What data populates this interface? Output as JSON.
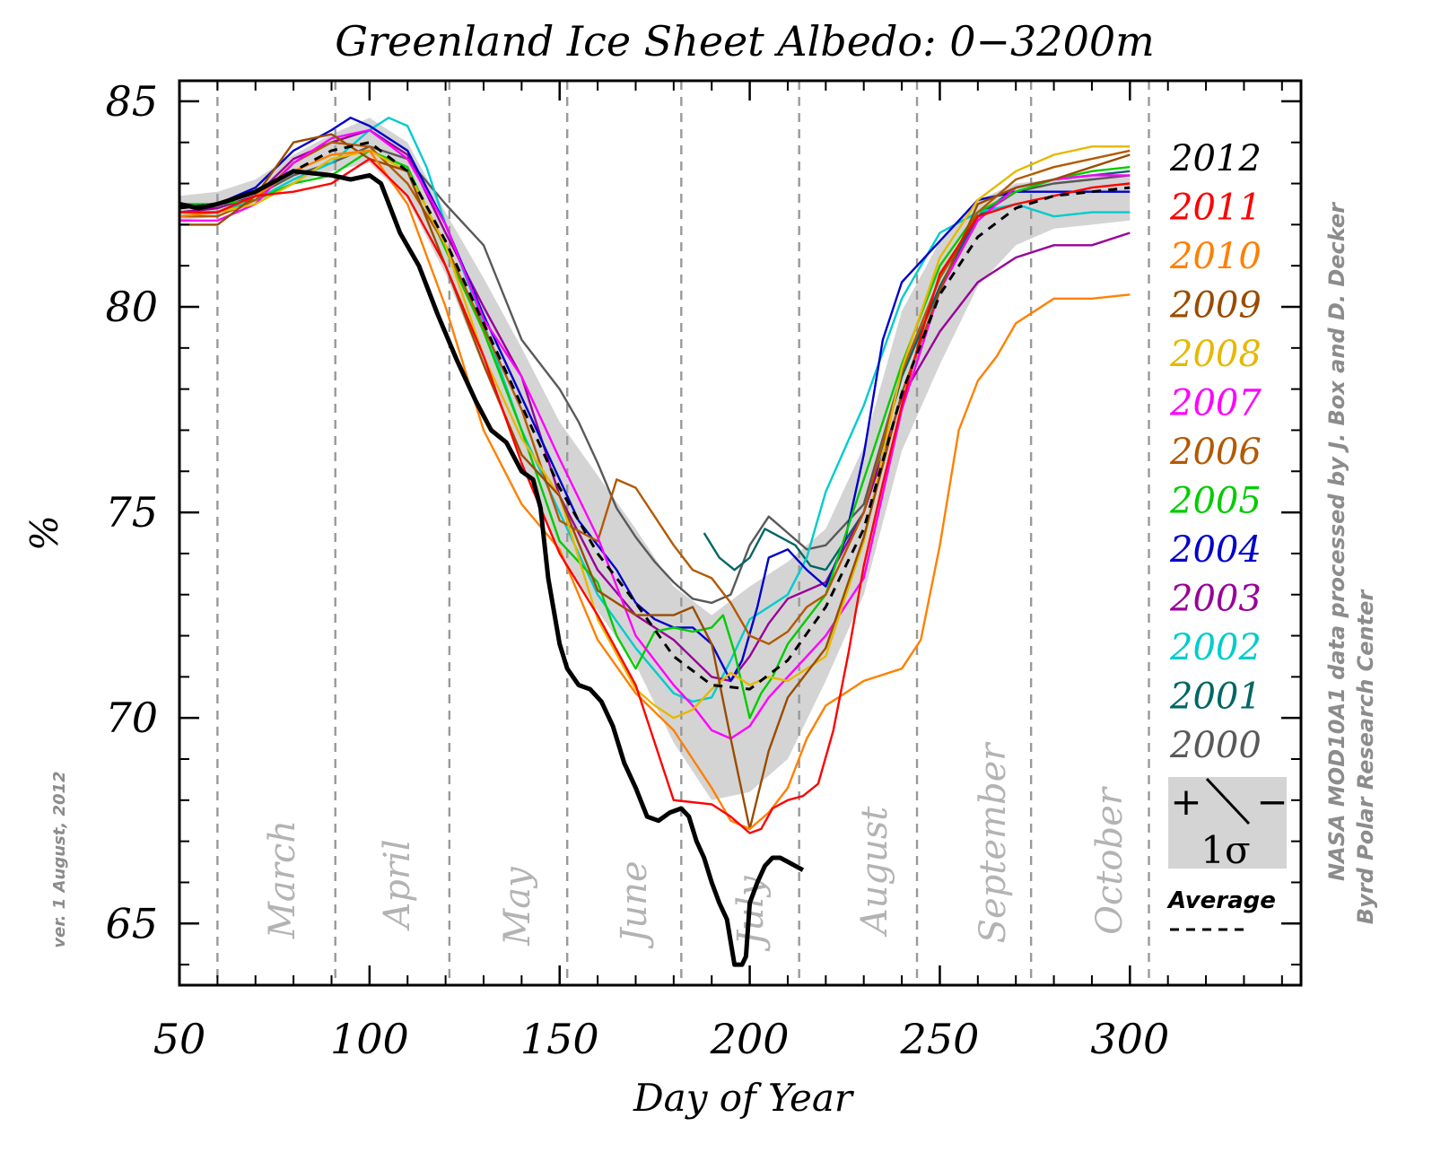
{
  "chart_data": {
    "type": "line",
    "title": "Greenland Ice Sheet Albedo: 0−3200m",
    "xlabel": "Day of Year",
    "ylabel": "%",
    "xlim": [
      50,
      345
    ],
    "ylim": [
      63.5,
      85.5
    ],
    "xticks": [
      50,
      100,
      150,
      200,
      250,
      300
    ],
    "yticks": [
      65,
      70,
      75,
      80,
      85
    ],
    "month_markers": [
      {
        "name": "March",
        "day": 60
      },
      {
        "name": "April",
        "day": 91
      },
      {
        "name": "May",
        "day": 121
      },
      {
        "name": "June",
        "day": 152
      },
      {
        "name": "July",
        "day": 182
      },
      {
        "name": "August",
        "day": 213
      },
      {
        "name": "September",
        "day": 244
      },
      {
        "name": "October",
        "day": 274
      },
      {
        "name": "",
        "day": 305
      }
    ],
    "grid": "vertical dashed month boundaries",
    "legend_position": "right",
    "band": {
      "label": "1σ",
      "plus": "+",
      "minus": "−",
      "color": "#d4d4d4",
      "x": [
        50,
        60,
        70,
        80,
        90,
        100,
        110,
        120,
        130,
        140,
        150,
        160,
        170,
        180,
        190,
        200,
        210,
        220,
        230,
        240,
        250,
        260,
        270,
        280,
        290,
        300
      ],
      "upper": [
        82.7,
        82.8,
        83.1,
        83.7,
        84.2,
        84.6,
        84.0,
        82.3,
        80.7,
        79.0,
        77.2,
        75.9,
        74.6,
        73.2,
        72.5,
        73.2,
        73.8,
        74.6,
        76.6,
        79.9,
        81.6,
        82.6,
        83.0,
        83.1,
        83.2,
        83.2
      ],
      "lower": [
        82.1,
        82.2,
        82.5,
        83.0,
        83.3,
        83.5,
        82.6,
        80.8,
        78.5,
        76.3,
        74.0,
        72.6,
        71.3,
        69.4,
        68.0,
        68.2,
        69.0,
        70.9,
        73.0,
        76.5,
        78.6,
        80.5,
        81.5,
        81.9,
        82.0,
        82.1
      ]
    },
    "average": {
      "name": "Average",
      "style": "dashed",
      "x": [
        50,
        60,
        70,
        80,
        90,
        100,
        110,
        120,
        130,
        140,
        150,
        160,
        170,
        180,
        190,
        200,
        210,
        220,
        230,
        240,
        250,
        260,
        270,
        280,
        290,
        300
      ],
      "y": [
        82.4,
        82.5,
        82.8,
        83.3,
        83.8,
        84.0,
        83.3,
        81.6,
        79.6,
        77.6,
        75.6,
        74.0,
        72.8,
        71.5,
        70.8,
        70.7,
        71.4,
        72.7,
        74.6,
        77.9,
        80.3,
        81.7,
        82.4,
        82.7,
        82.8,
        82.9
      ]
    },
    "series": [
      {
        "name": "2012",
        "color": "#000000",
        "width": 5,
        "x": [
          50,
          55,
          60,
          70,
          80,
          90,
          95,
          100,
          103,
          108,
          113,
          118,
          123,
          128,
          132,
          136,
          140,
          143,
          145,
          147,
          150,
          152,
          155,
          158,
          161,
          164,
          167,
          170,
          173,
          176,
          179,
          182,
          184,
          186,
          188,
          190,
          192,
          194,
          196,
          198,
          199,
          200,
          202,
          204,
          206,
          208,
          210,
          212,
          214
        ],
        "y": [
          82.5,
          82.4,
          82.5,
          82.8,
          83.3,
          83.2,
          83.1,
          83.2,
          83.0,
          81.8,
          81.0,
          79.8,
          78.7,
          77.7,
          77.0,
          76.7,
          76.0,
          75.8,
          75.1,
          73.4,
          71.8,
          71.2,
          70.8,
          70.7,
          70.4,
          69.8,
          68.9,
          68.3,
          67.6,
          67.5,
          67.7,
          67.8,
          67.6,
          67.0,
          66.6,
          66.0,
          65.5,
          65.1,
          64.0,
          64.0,
          64.2,
          65.5,
          66.0,
          66.4,
          66.6,
          66.6,
          66.5,
          66.4,
          66.3
        ]
      },
      {
        "name": "2011",
        "color": "#ff0000",
        "width": 2.4,
        "x": [
          50,
          60,
          70,
          80,
          90,
          100,
          110,
          120,
          130,
          140,
          150,
          160,
          170,
          180,
          190,
          195,
          200,
          203,
          206,
          210,
          214,
          218,
          222,
          226,
          230,
          235,
          240,
          245,
          250,
          260,
          270,
          280,
          290,
          300
        ],
        "y": [
          82.3,
          82.3,
          82.7,
          82.8,
          83.0,
          83.6,
          82.7,
          81.0,
          78.8,
          76.2,
          74.0,
          72.5,
          70.8,
          68.0,
          67.9,
          67.6,
          67.2,
          67.3,
          67.8,
          68.0,
          68.1,
          68.4,
          69.7,
          71.6,
          73.7,
          75.7,
          77.6,
          79.3,
          80.8,
          82.2,
          82.5,
          82.7,
          82.9,
          83.0
        ]
      },
      {
        "name": "2010",
        "color": "#ff8000",
        "width": 2.4,
        "x": [
          50,
          60,
          70,
          80,
          90,
          100,
          110,
          120,
          130,
          140,
          150,
          160,
          170,
          180,
          190,
          195,
          200,
          205,
          210,
          215,
          220,
          225,
          230,
          240,
          245,
          250,
          255,
          260,
          265,
          270,
          280,
          290,
          300
        ],
        "y": [
          82.2,
          82.3,
          82.7,
          83.3,
          83.7,
          83.8,
          82.5,
          80.0,
          77.0,
          75.2,
          74.1,
          71.9,
          70.6,
          69.7,
          68.3,
          67.5,
          67.3,
          67.7,
          68.3,
          69.5,
          70.3,
          70.6,
          70.9,
          71.2,
          71.9,
          74.2,
          77.0,
          78.2,
          78.8,
          79.6,
          80.2,
          80.2,
          80.3
        ]
      },
      {
        "name": "2009",
        "color": "#994c00",
        "width": 2.4,
        "x": [
          50,
          60,
          70,
          80,
          90,
          100,
          110,
          120,
          130,
          140,
          150,
          160,
          170,
          180,
          185,
          190,
          195,
          200,
          205,
          210,
          220,
          230,
          240,
          250,
          260,
          270,
          280,
          290,
          300
        ],
        "y": [
          82.0,
          82.0,
          82.7,
          84.0,
          84.2,
          83.6,
          83.3,
          81.0,
          78.6,
          76.4,
          75.4,
          73.1,
          72.5,
          72.5,
          72.7,
          71.8,
          69.5,
          67.3,
          69.2,
          70.5,
          71.7,
          74.4,
          77.9,
          80.4,
          82.5,
          82.9,
          83.1,
          83.4,
          83.7
        ]
      },
      {
        "name": "2008",
        "color": "#e6b800",
        "width": 2.4,
        "x": [
          50,
          60,
          70,
          80,
          90,
          100,
          110,
          120,
          130,
          140,
          150,
          160,
          170,
          175,
          180,
          185,
          190,
          195,
          200,
          205,
          210,
          220,
          230,
          240,
          250,
          260,
          270,
          280,
          290,
          300
        ],
        "y": [
          82.3,
          82.3,
          82.5,
          83.0,
          83.6,
          83.8,
          83.3,
          81.5,
          78.8,
          76.8,
          75.4,
          72.4,
          70.7,
          70.3,
          70.0,
          70.2,
          70.7,
          71.1,
          70.8,
          71.0,
          70.9,
          71.5,
          74.3,
          78.5,
          81.2,
          82.6,
          83.3,
          83.7,
          83.9,
          83.9
        ]
      },
      {
        "name": "2007",
        "color": "#ff00ff",
        "width": 2.4,
        "x": [
          50,
          60,
          70,
          80,
          90,
          100,
          110,
          120,
          130,
          140,
          150,
          160,
          170,
          180,
          185,
          190,
          195,
          200,
          205,
          210,
          215,
          220,
          230,
          240,
          250,
          260,
          270,
          280,
          290,
          300
        ],
        "y": [
          82.1,
          82.1,
          82.5,
          83.5,
          84.1,
          84.3,
          83.6,
          82.0,
          79.7,
          78.3,
          76.3,
          74.4,
          72.0,
          70.8,
          70.3,
          69.7,
          69.5,
          69.8,
          70.5,
          71.0,
          71.5,
          72.0,
          73.4,
          77.5,
          80.4,
          82.1,
          82.9,
          83.1,
          83.2,
          83.2
        ]
      },
      {
        "name": "2006",
        "color": "#b35900",
        "width": 2.4,
        "x": [
          50,
          60,
          70,
          80,
          90,
          100,
          110,
          120,
          130,
          140,
          150,
          160,
          165,
          170,
          175,
          180,
          185,
          190,
          195,
          200,
          205,
          210,
          215,
          220,
          230,
          240,
          250,
          260,
          270,
          280,
          290,
          300
        ],
        "y": [
          82.2,
          82.2,
          82.6,
          83.5,
          84.0,
          83.9,
          83.0,
          81.5,
          79.5,
          77.5,
          74.8,
          74.3,
          75.8,
          75.6,
          74.9,
          74.2,
          73.6,
          73.4,
          72.8,
          72.0,
          71.8,
          72.1,
          72.7,
          73.0,
          75.0,
          78.4,
          80.7,
          82.3,
          83.1,
          83.4,
          83.6,
          83.8
        ]
      },
      {
        "name": "2005",
        "color": "#00cc00",
        "width": 2.4,
        "x": [
          50,
          60,
          70,
          80,
          90,
          100,
          110,
          120,
          130,
          140,
          150,
          160,
          165,
          170,
          175,
          180,
          185,
          190,
          193,
          196,
          200,
          203,
          206,
          210,
          220,
          230,
          240,
          250,
          260,
          270,
          280,
          290,
          300
        ],
        "y": [
          82.5,
          82.5,
          82.6,
          83.0,
          83.2,
          83.8,
          83.4,
          81.4,
          79.4,
          77.0,
          74.3,
          73.3,
          72.0,
          71.2,
          72.1,
          72.2,
          72.1,
          72.2,
          72.5,
          71.6,
          70.0,
          70.6,
          71.0,
          71.8,
          73.0,
          75.8,
          78.6,
          81.0,
          82.3,
          82.8,
          83.1,
          83.3,
          83.4
        ]
      },
      {
        "name": "2004",
        "color": "#0000cc",
        "width": 2.4,
        "x": [
          50,
          60,
          70,
          80,
          90,
          95,
          100,
          110,
          120,
          130,
          140,
          150,
          155,
          160,
          165,
          170,
          175,
          180,
          185,
          190,
          195,
          198,
          202,
          205,
          210,
          215,
          220,
          225,
          230,
          235,
          240,
          250,
          260,
          270,
          280,
          290,
          300
        ],
        "y": [
          82.4,
          82.5,
          82.9,
          83.8,
          84.3,
          84.6,
          84.4,
          83.8,
          82.0,
          79.8,
          77.8,
          75.8,
          74.8,
          74.2,
          73.6,
          72.8,
          72.4,
          72.2,
          72.2,
          71.8,
          70.9,
          71.4,
          72.7,
          73.9,
          74.1,
          73.6,
          73.2,
          74.3,
          76.4,
          79.2,
          80.6,
          81.6,
          82.6,
          82.8,
          82.8,
          82.8,
          82.8
        ]
      },
      {
        "name": "2003",
        "color": "#990099",
        "width": 2.4,
        "x": [
          50,
          60,
          70,
          80,
          90,
          100,
          110,
          120,
          130,
          140,
          150,
          160,
          170,
          180,
          190,
          195,
          200,
          205,
          210,
          220,
          230,
          240,
          250,
          260,
          270,
          280,
          290,
          300
        ],
        "y": [
          82.3,
          82.4,
          82.7,
          83.6,
          84.0,
          84.3,
          83.7,
          81.8,
          80.0,
          78.3,
          75.4,
          73.6,
          72.5,
          71.9,
          71.0,
          70.9,
          71.5,
          72.3,
          72.9,
          73.3,
          75.0,
          77.8,
          79.4,
          80.6,
          81.2,
          81.5,
          81.5,
          81.8
        ]
      },
      {
        "name": "2002",
        "color": "#00cccc",
        "width": 2.4,
        "x": [
          50,
          60,
          70,
          80,
          90,
          100,
          105,
          110,
          115,
          120,
          130,
          140,
          150,
          160,
          170,
          180,
          185,
          190,
          195,
          200,
          205,
          210,
          215,
          220,
          230,
          240,
          250,
          260,
          270,
          280,
          290,
          300
        ],
        "y": [
          82.2,
          82.3,
          82.6,
          83.1,
          83.5,
          84.3,
          84.6,
          84.4,
          83.4,
          82.0,
          79.6,
          77.0,
          75.0,
          73.0,
          71.7,
          70.6,
          70.4,
          70.5,
          71.4,
          72.4,
          72.7,
          73.0,
          73.9,
          75.5,
          77.6,
          80.2,
          81.8,
          82.3,
          82.5,
          82.2,
          82.3,
          82.3
        ]
      },
      {
        "name": "2001",
        "color": "#006666",
        "width": 2.4,
        "x": [
          188,
          192,
          196,
          200,
          204,
          208,
          212,
          216,
          220
        ],
        "y": [
          74.5,
          73.9,
          73.6,
          73.9,
          74.6,
          74.4,
          74.2,
          73.7,
          73.6
        ],
        "x2": [
          220,
          230,
          240,
          250,
          260,
          270,
          280,
          290,
          300
        ],
        "y2": [
          73.6,
          75.0,
          78.3,
          80.5,
          82.2,
          82.9,
          83.1,
          83.2,
          83.3
        ]
      },
      {
        "name": "2000",
        "color": "#595959",
        "width": 2.4,
        "x": [
          50,
          60,
          70,
          80,
          90,
          100,
          110,
          120,
          130,
          140,
          150,
          155,
          160,
          165,
          170,
          175,
          180,
          185,
          190,
          195,
          200,
          205,
          210,
          215,
          220,
          230,
          240,
          250,
          260,
          270,
          280,
          290,
          300
        ],
        "y": [
          82.3,
          82.4,
          82.7,
          83.2,
          83.5,
          83.9,
          83.6,
          82.5,
          81.5,
          79.2,
          78.0,
          77.2,
          76.2,
          75.1,
          74.4,
          73.8,
          73.3,
          72.9,
          72.8,
          73.0,
          74.2,
          74.9,
          74.5,
          74.1,
          74.2,
          75.2,
          78.4,
          80.7,
          82.2,
          82.8,
          83.0,
          83.1,
          83.2
        ]
      }
    ]
  },
  "month_labels": {
    "march": "March",
    "april": "April",
    "may": "May",
    "june": "June",
    "july": "July",
    "august": "August",
    "september": "September",
    "october": "October"
  },
  "legend": {
    "years": [
      "2012",
      "2011",
      "2010",
      "2009",
      "2008",
      "2007",
      "2006",
      "2005",
      "2004",
      "2003",
      "2002",
      "2001",
      "2000"
    ],
    "band_plus": "+",
    "band_minus": "−",
    "band_label": "1σ",
    "average_label": "Average"
  },
  "credits": {
    "line1": "NASA MOD10A1 data processed by J. Box and D. Decker",
    "line2": "Byrd Polar Research Center",
    "version": "ver. 1 August, 2012"
  }
}
